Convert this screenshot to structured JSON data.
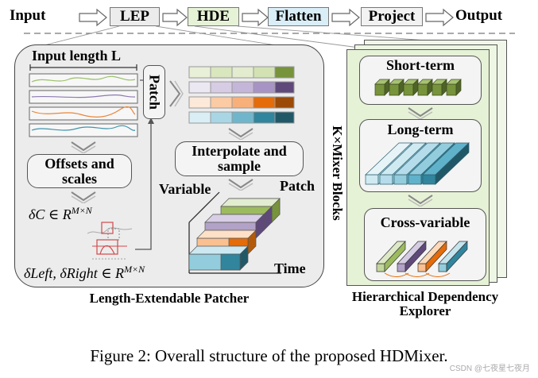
{
  "pipeline": {
    "input": "Input",
    "lep": "LEP",
    "hde": "HDE",
    "flatten": "Flatten",
    "project": "Project",
    "output": "Output"
  },
  "lep_panel": {
    "input_length": "Input length L",
    "patch": "Patch",
    "offsets_scales": "Offsets and scales",
    "delta_c": "δC ∈ R",
    "delta_c_sup": "M×N",
    "delta_lr": "δLeft, δRight ∈ R",
    "delta_lr_sup": "M×N",
    "interpolate": "Interpolate and sample",
    "variable": "Variable",
    "patch_axis": "Patch",
    "time_axis": "Time",
    "caption": "Length-Extendable Patcher"
  },
  "hde_panel": {
    "k_mixer": "K×Mixer Blocks",
    "short_term": "Short-term",
    "long_term": "Long-term",
    "cross_variable": "Cross-variable",
    "caption_line1": "Hierarchical Dependency",
    "caption_line2": "Explorer"
  },
  "figure_caption": "Figure 2: Overall structure of the proposed HDMixer.",
  "watermark": "CSDN @七夜星七夜月",
  "colors": {
    "lep_fill": "#ececec",
    "hde_fill": "#e6f2d6",
    "flatten_fill": "#d9eef7",
    "project_fill": "#f2f2f2",
    "green": "#77933c",
    "light_green": "#c3d69b",
    "purple": "#5f497a",
    "light_purple": "#b3a2c7",
    "orange": "#e46c0a",
    "light_orange": "#fac090",
    "teal": "#31859c",
    "light_teal": "#93cddd"
  }
}
